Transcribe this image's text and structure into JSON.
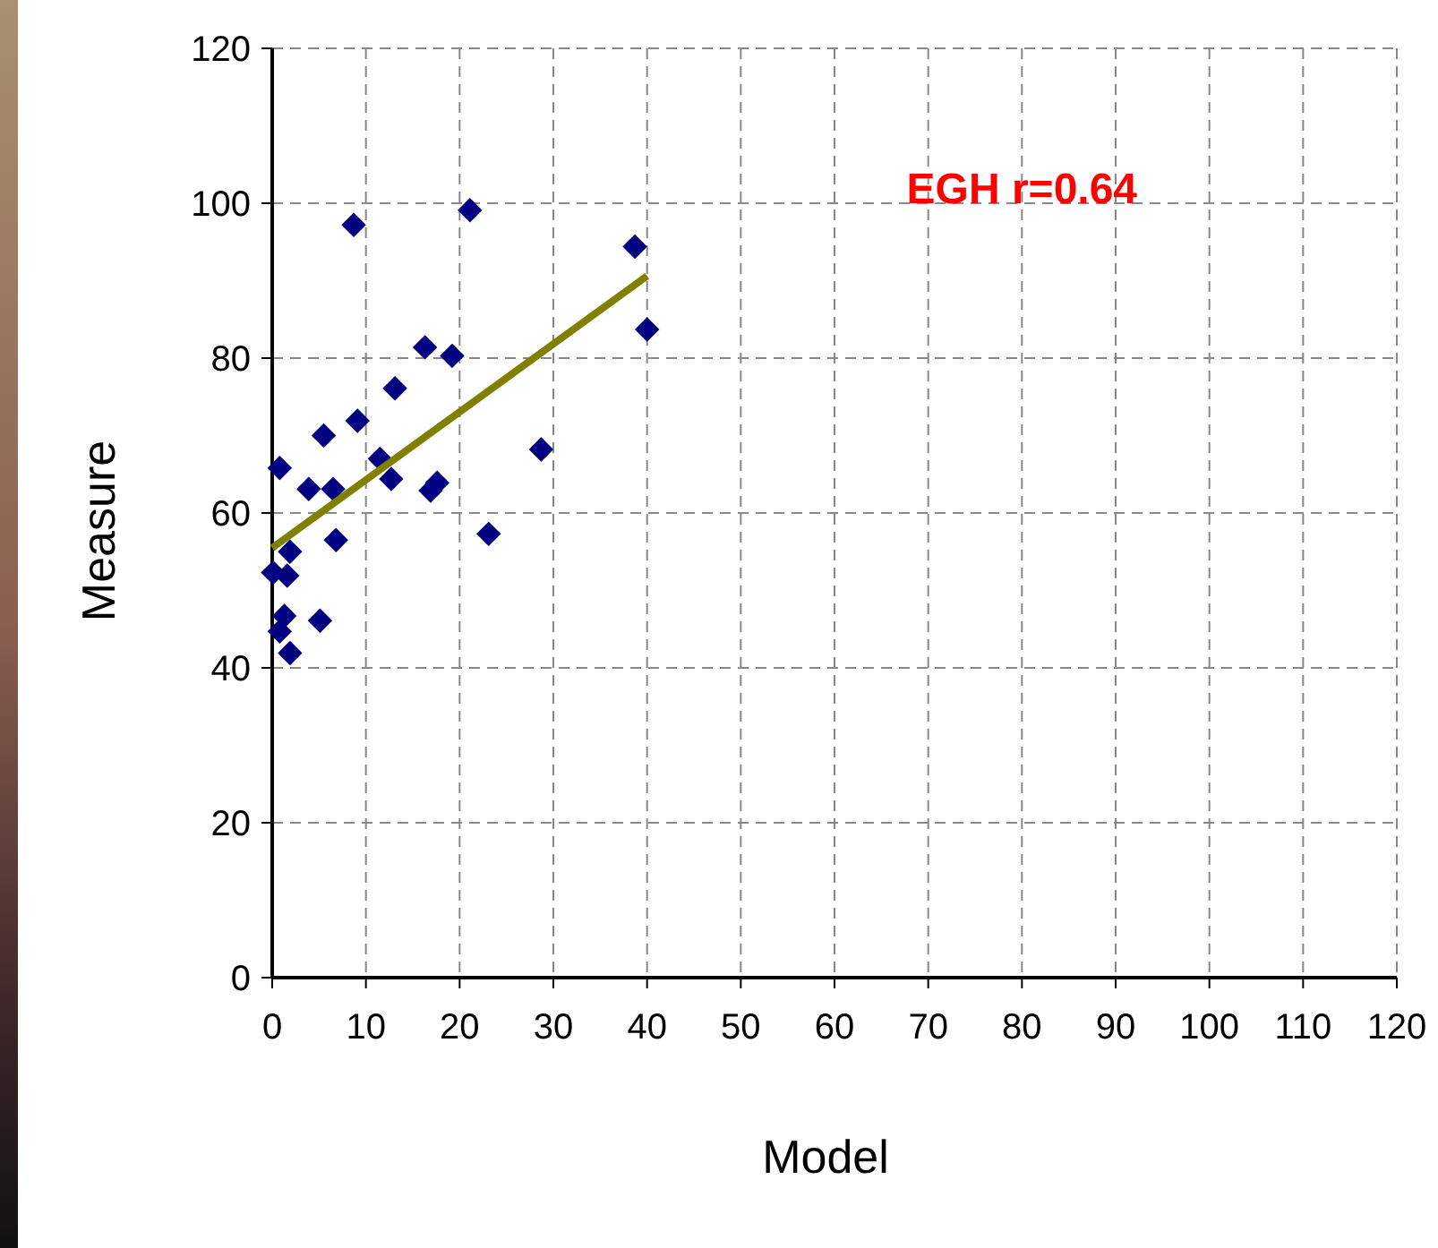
{
  "chart_data": {
    "type": "scatter",
    "xlabel": "Model",
    "ylabel": "Measure",
    "annotations": [
      "EGH r=0.64"
    ],
    "xlim": [
      0,
      120
    ],
    "xticks": [
      0,
      10,
      20,
      30,
      40,
      50,
      60,
      70,
      80,
      90,
      100,
      110,
      120
    ],
    "ylim": [
      0,
      120
    ],
    "yticks": [
      0,
      20,
      40,
      60,
      80,
      100,
      120
    ],
    "grid": true,
    "marker": "diamond",
    "series": [
      {
        "color": "#000080",
        "x": [
          8.7,
          21.1,
          38.7,
          40.0,
          16.3,
          19.2,
          13.1,
          9.1,
          5.5,
          0.8,
          28.7,
          11.5,
          12.7,
          3.9,
          6.5,
          17.6,
          16.9,
          6.8,
          23.1,
          1.9,
          0.1,
          1.6,
          1.3,
          0.8,
          5.1,
          1.9
        ],
        "values": [
          97.2,
          99.1,
          94.4,
          83.7,
          81.4,
          80.3,
          76.1,
          71.9,
          70.0,
          65.8,
          68.2,
          67.0,
          64.4,
          63.1,
          63.1,
          63.9,
          62.9,
          56.5,
          57.3,
          55.0,
          52.3,
          51.9,
          46.7,
          44.7,
          46.1,
          41.9
        ]
      },
      {
        "type": "line",
        "color": "#808000",
        "x": [
          0,
          40
        ],
        "values": [
          55.5,
          90.6
        ],
        "marker": "none"
      }
    ]
  }
}
